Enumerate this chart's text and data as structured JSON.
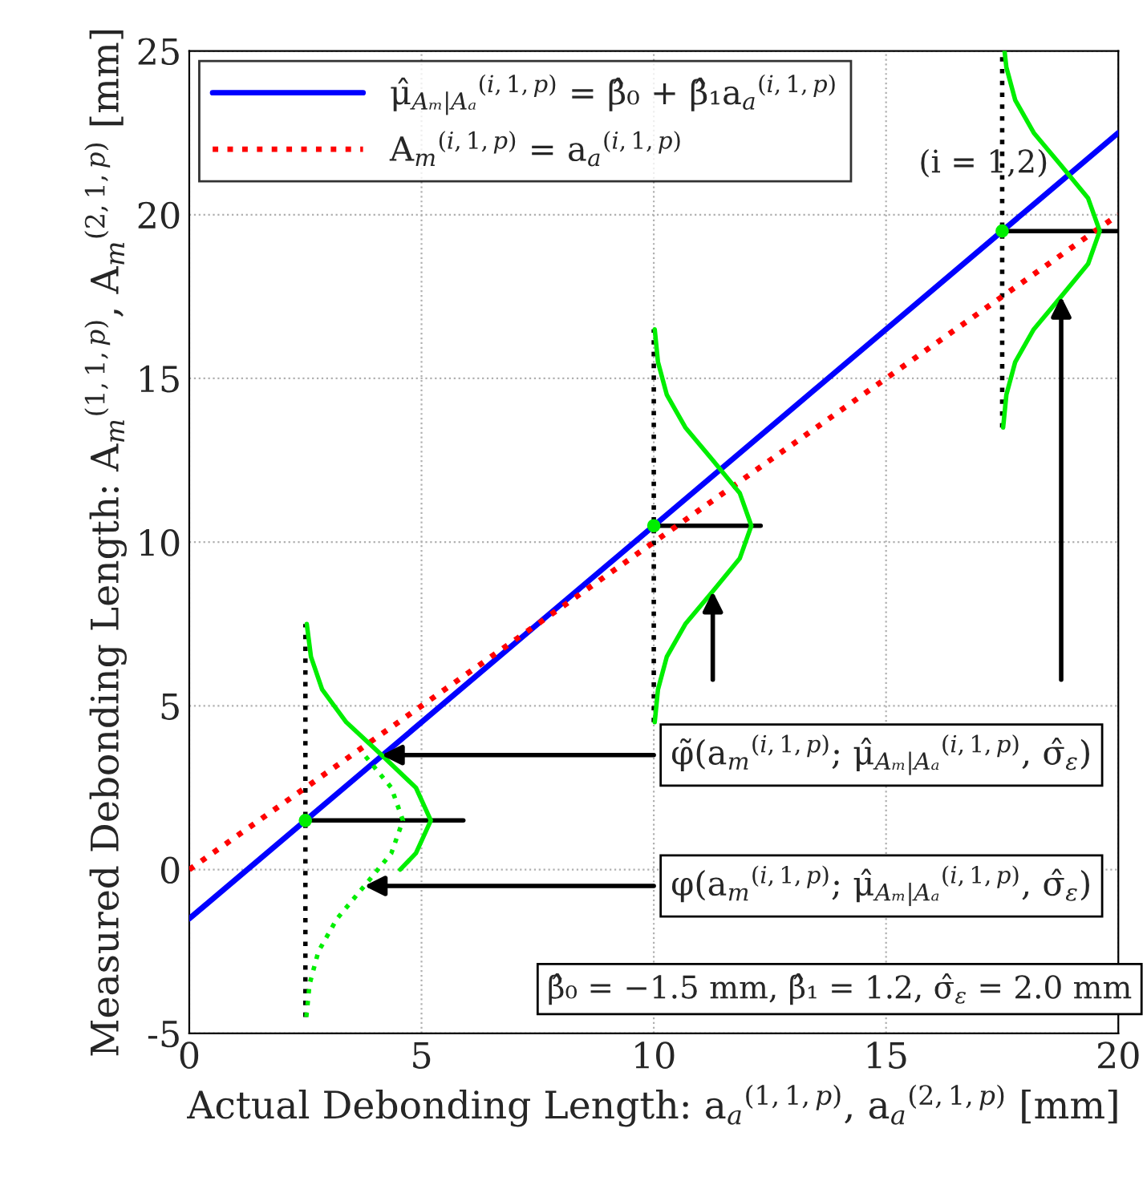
{
  "chart_data": {
    "type": "line",
    "xlabel": "Actual Debonding Length: a$_{a}$$^{(1,1,p)}$, a$_{a}$$^{(2,1,p)}$ [mm]",
    "ylabel": "Measured Debonding Length: A$_{m}$$^{(1,1,p)}$, A$_{m}$$^{(2,1,p)}$ [mm]",
    "xlim": [
      0,
      20
    ],
    "ylim": [
      -5,
      25
    ],
    "xticks": [
      0,
      5,
      10,
      15,
      20
    ],
    "yticks": [
      -5,
      0,
      5,
      10,
      15,
      20,
      25
    ],
    "grid": true,
    "legend": "top left",
    "series": [
      {
        "name": "μ̂$_{Aₘ|Aₐ}$$^{(i,1,p)}$ = β̂₀ + β̂₁a$_{a}$$^{(i,1,p)}$",
        "color": "#0000ff",
        "line_style": "solid",
        "x": [
          0,
          20
        ],
        "values": [
          -1.5,
          22.5
        ]
      },
      {
        "name": "A$_{m}$$^{(i,1,p)}$ = a$_{a}$$^{(i,1,p)}$",
        "color": "#ff0000",
        "line_style": "dotted",
        "x": [
          0,
          20
        ],
        "values": [
          0,
          20
        ]
      },
      {
        "color": "#00ee00",
        "line_style": "solid",
        "x": [
          2.53,
          2.62,
          2.86,
          3.38,
          4.14,
          4.88,
          5.2,
          4.88,
          4.54
        ],
        "values": [
          7.5,
          6.5,
          5.5,
          4.5,
          3.5,
          2.5,
          1.5,
          0.5,
          0
        ]
      },
      {
        "color": "#00ee00",
        "line_style": "dotted",
        "x": [
          2.52,
          2.59,
          2.78,
          3.18,
          3.77,
          4.35,
          4.6,
          4.35,
          3.77
        ],
        "values": [
          -4.5,
          -3.5,
          -2.5,
          -1.5,
          -0.5,
          0.5,
          1.5,
          2.5,
          3.5
        ]
      },
      {
        "color": "#00ee00",
        "line_style": "solid",
        "x": [
          10.02,
          10.09,
          10.28,
          10.68,
          11.27,
          11.85,
          12.1,
          11.85,
          11.27,
          10.68,
          10.28,
          10.09,
          10.02
        ],
        "values": [
          4.5,
          5.5,
          6.5,
          7.5,
          8.5,
          9.5,
          10.5,
          11.5,
          12.5,
          13.5,
          14.5,
          15.5,
          16.5
        ]
      },
      {
        "color": "#00ee00",
        "line_style": "solid",
        "x": [
          17.52,
          17.59,
          17.78,
          18.18,
          18.77,
          19.35,
          19.6,
          19.35,
          18.77,
          18.18,
          17.78,
          17.59,
          17.55
        ],
        "values": [
          13.5,
          14.5,
          15.5,
          16.5,
          17.5,
          18.5,
          19.5,
          20.5,
          21.5,
          22.5,
          23.5,
          24.5,
          25
        ]
      },
      {
        "color": "#000000",
        "line_style": "dotted",
        "x": [
          2.5,
          2.5
        ],
        "values": [
          -4.5,
          7.5
        ]
      },
      {
        "color": "#000000",
        "line_style": "dotted",
        "x": [
          10,
          10
        ],
        "values": [
          4.5,
          16.5
        ]
      },
      {
        "color": "#000000",
        "line_style": "dotted",
        "x": [
          17.5,
          17.5
        ],
        "values": [
          13.5,
          25
        ]
      },
      {
        "color": "#000000",
        "line_style": "solid",
        "x": [
          2.5,
          5.9
        ],
        "values": [
          1.5,
          1.5
        ]
      },
      {
        "color": "#000000",
        "line_style": "solid",
        "x": [
          10,
          12.3
        ],
        "values": [
          10.5,
          10.5
        ]
      },
      {
        "color": "#000000",
        "line_style": "solid",
        "x": [
          17.5,
          20
        ],
        "values": [
          19.5,
          19.5
        ]
      },
      {
        "type": "scatter",
        "color": "#00ee00",
        "marker": "circle",
        "x": [
          2.5,
          10,
          17.5
        ],
        "values": [
          1.5,
          10.5,
          19.5
        ]
      }
    ],
    "annotations": [
      "φ̃(a$_{m}$$^{(i,1,p)}$; μ̂$_{Aₘ|Aₐ}$$^{(i,1,p)}$, σ̂$_{ε}$)",
      "φ(a$_{m}$$^{(i,1,p)}$; μ̂$_{Aₘ|Aₐ}$$^{(i,1,p)}$, σ̂$_{ε}$)",
      "β̂₀ = −1.5 mm, β̂₁ = 1.2, σ̂$_{ε}$ = 2.0 mm",
      "(i = 1,2)"
    ]
  }
}
